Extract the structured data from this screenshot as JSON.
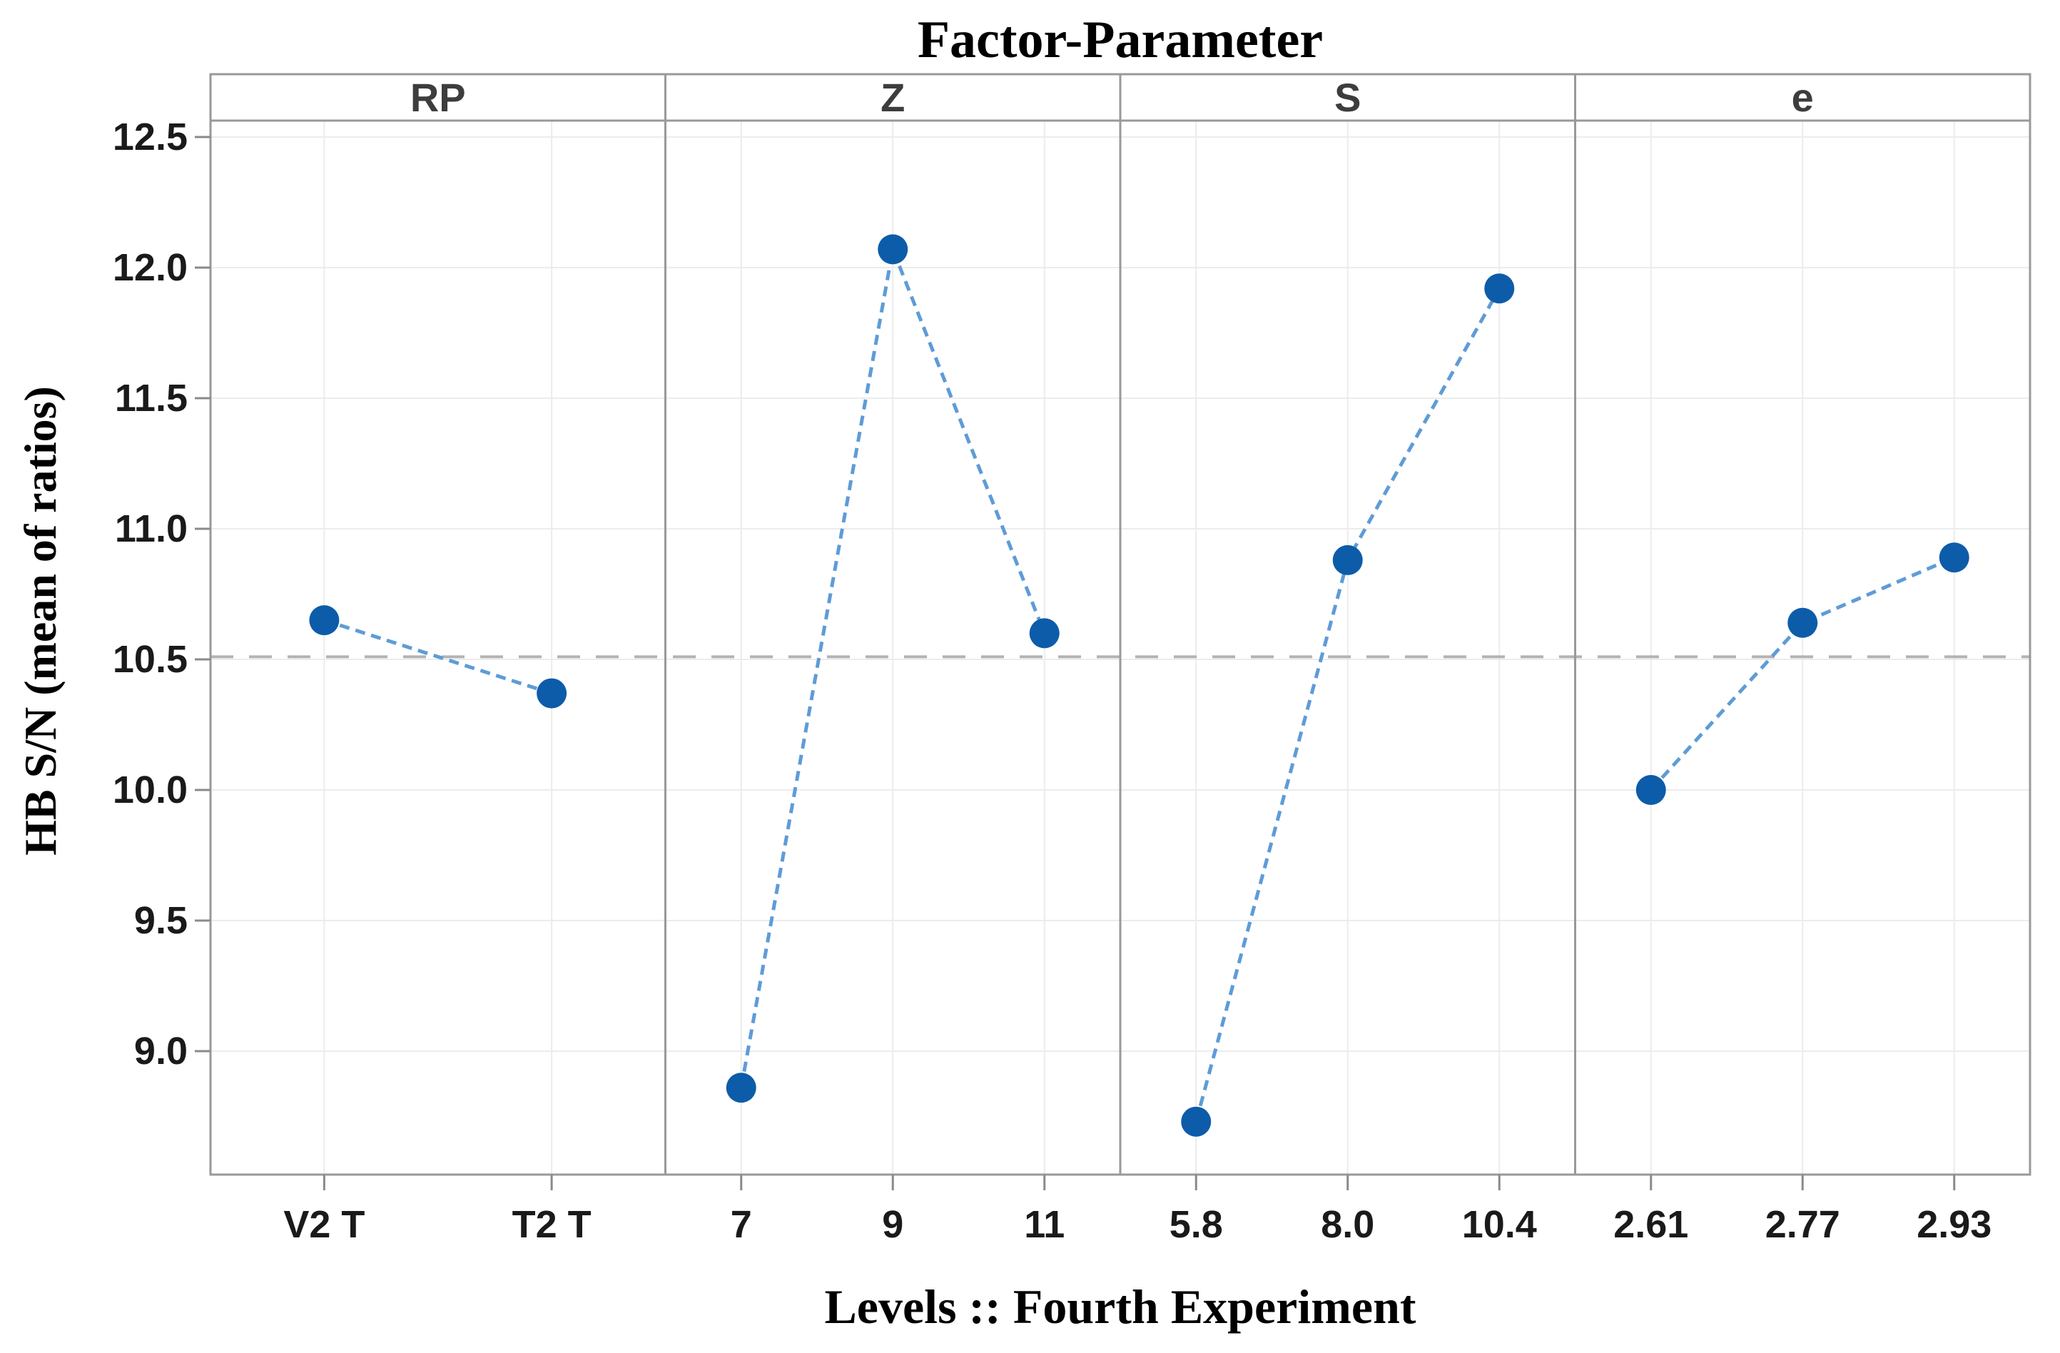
{
  "figure": {
    "title": "Factor-Parameter",
    "x_axis_title": "Levels :: Fourth Experiment",
    "y_axis_title": "HB S/N (mean of ratios)"
  },
  "chart_data": {
    "type": "line",
    "subtype": "main-effects-plot",
    "title": "Factor-Parameter",
    "xlabel": "Levels :: Fourth Experiment",
    "ylabel": "HB S/N (mean of ratios)",
    "ylim": [
      8.53,
      12.56
    ],
    "yticks": [
      12.5,
      12.0,
      11.5,
      11.0,
      10.5,
      10.0,
      9.5,
      9.0
    ],
    "ytick_labels": [
      "12.5",
      "12.0",
      "11.5",
      "11.0",
      "10.5",
      "10.0",
      "9.5",
      "9.0"
    ],
    "grid": true,
    "legend": "none",
    "reference_line": {
      "value": 10.51,
      "style": "dashed",
      "meaning": "overall mean of S/N ratios"
    },
    "panels": [
      {
        "factor": "RP",
        "categories": [
          "V2 T",
          "T2 T"
        ],
        "values": [
          10.65,
          10.37
        ]
      },
      {
        "factor": "Z",
        "categories": [
          "7",
          "9",
          "11"
        ],
        "values": [
          8.86,
          12.07,
          10.6
        ]
      },
      {
        "factor": "S",
        "categories": [
          "5.8",
          "8.0",
          "10.4"
        ],
        "values": [
          8.73,
          10.88,
          11.92
        ]
      },
      {
        "factor": "e",
        "categories": [
          "2.61",
          "2.77",
          "2.93"
        ],
        "values": [
          10.0,
          10.64,
          10.89
        ]
      }
    ],
    "colors": {
      "marker": "#0d5ca9",
      "line": "#5e9cd6",
      "grid": "#ececec",
      "frame": "#999999",
      "tick": "#8a8a8a",
      "reference": "#b3b3b3",
      "tick_text": "#1a1a1a",
      "header_text": "#3d3d3d"
    }
  }
}
